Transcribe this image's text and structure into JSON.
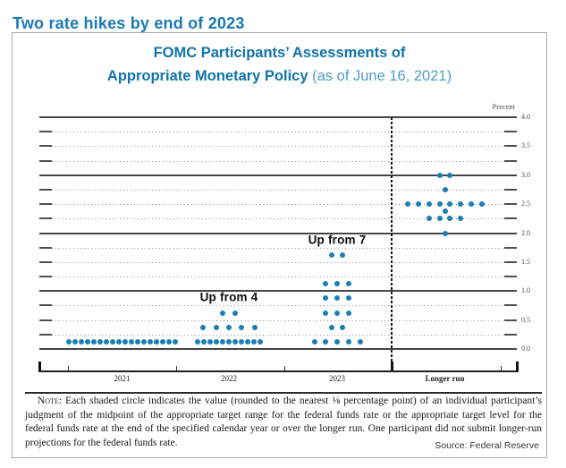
{
  "page": {
    "headline": "Two rate hikes by end of 2023"
  },
  "figure": {
    "title_line1": "FOMC Participants’ Assessments of",
    "title_line2": "Appropriate Monetary Policy",
    "title_suffix": "(as of June 16, 2021)",
    "note_label": "Note:",
    "note_body": "Each shaded circle indicates the value (rounded to the nearest ⅛ percentage point) of an individual participant’s judgment of the midpoint of the appropriate target range for the federal funds rate or the appropriate target level for the federal funds rate at the end of the specified calendar year or over the longer run. One participant did not submit longer-run projections for the federal funds rate.",
    "source": "Source: Federal Reserve"
  },
  "chart_data": {
    "type": "scatter",
    "subtype": "fomc-dot-plot",
    "title": "FOMC Participants’ Assessments of Appropriate Monetary Policy (as of June 16, 2021)",
    "y_axis_title": "Percent",
    "ylim": [
      0.0,
      4.0
    ],
    "grid_interval": 0.25,
    "label_interval": 0.5,
    "ytick_labels": [
      "4.0",
      "3.5",
      "3.0",
      "2.5",
      "2.0",
      "1.5",
      "1.0",
      "0.5",
      "0.0"
    ],
    "categories": [
      "2021",
      "2022",
      "2023",
      "Longer run"
    ],
    "columns": [
      {
        "label": "2021",
        "rows": [
          {
            "rate": 0.125,
            "count": 18
          }
        ]
      },
      {
        "label": "2022",
        "rows": [
          {
            "rate": 0.625,
            "count": 2
          },
          {
            "rate": 0.375,
            "count": 5
          },
          {
            "rate": 0.125,
            "count": 11
          }
        ]
      },
      {
        "label": "2023",
        "rows": [
          {
            "rate": 1.625,
            "count": 2
          },
          {
            "rate": 1.125,
            "count": 3
          },
          {
            "rate": 0.875,
            "count": 3
          },
          {
            "rate": 0.625,
            "count": 3
          },
          {
            "rate": 0.375,
            "count": 2
          },
          {
            "rate": 0.125,
            "count": 5
          }
        ]
      },
      {
        "label": "Longer run",
        "rows": [
          {
            "rate": 3.0,
            "count": 2
          },
          {
            "rate": 2.75,
            "count": 1
          },
          {
            "rate": 2.5,
            "count": 8
          },
          {
            "rate": 2.375,
            "count": 1
          },
          {
            "rate": 2.25,
            "count": 4
          },
          {
            "rate": 2.0,
            "count": 1
          }
        ]
      }
    ],
    "annotations": [
      {
        "text": "Up from 7",
        "column": "2023",
        "rate_y": 1.88
      },
      {
        "text": "Up from 4",
        "column": "2022",
        "rate_y": 0.9
      }
    ],
    "colors": {
      "dot": "#1b7fb4",
      "headline_blue": "#1a79b4",
      "title_blue": "#1173a9",
      "title_light_blue": "#4d9dc7"
    },
    "legend": "none",
    "grid": "dotted quarter-point lines, solid integer lines"
  }
}
